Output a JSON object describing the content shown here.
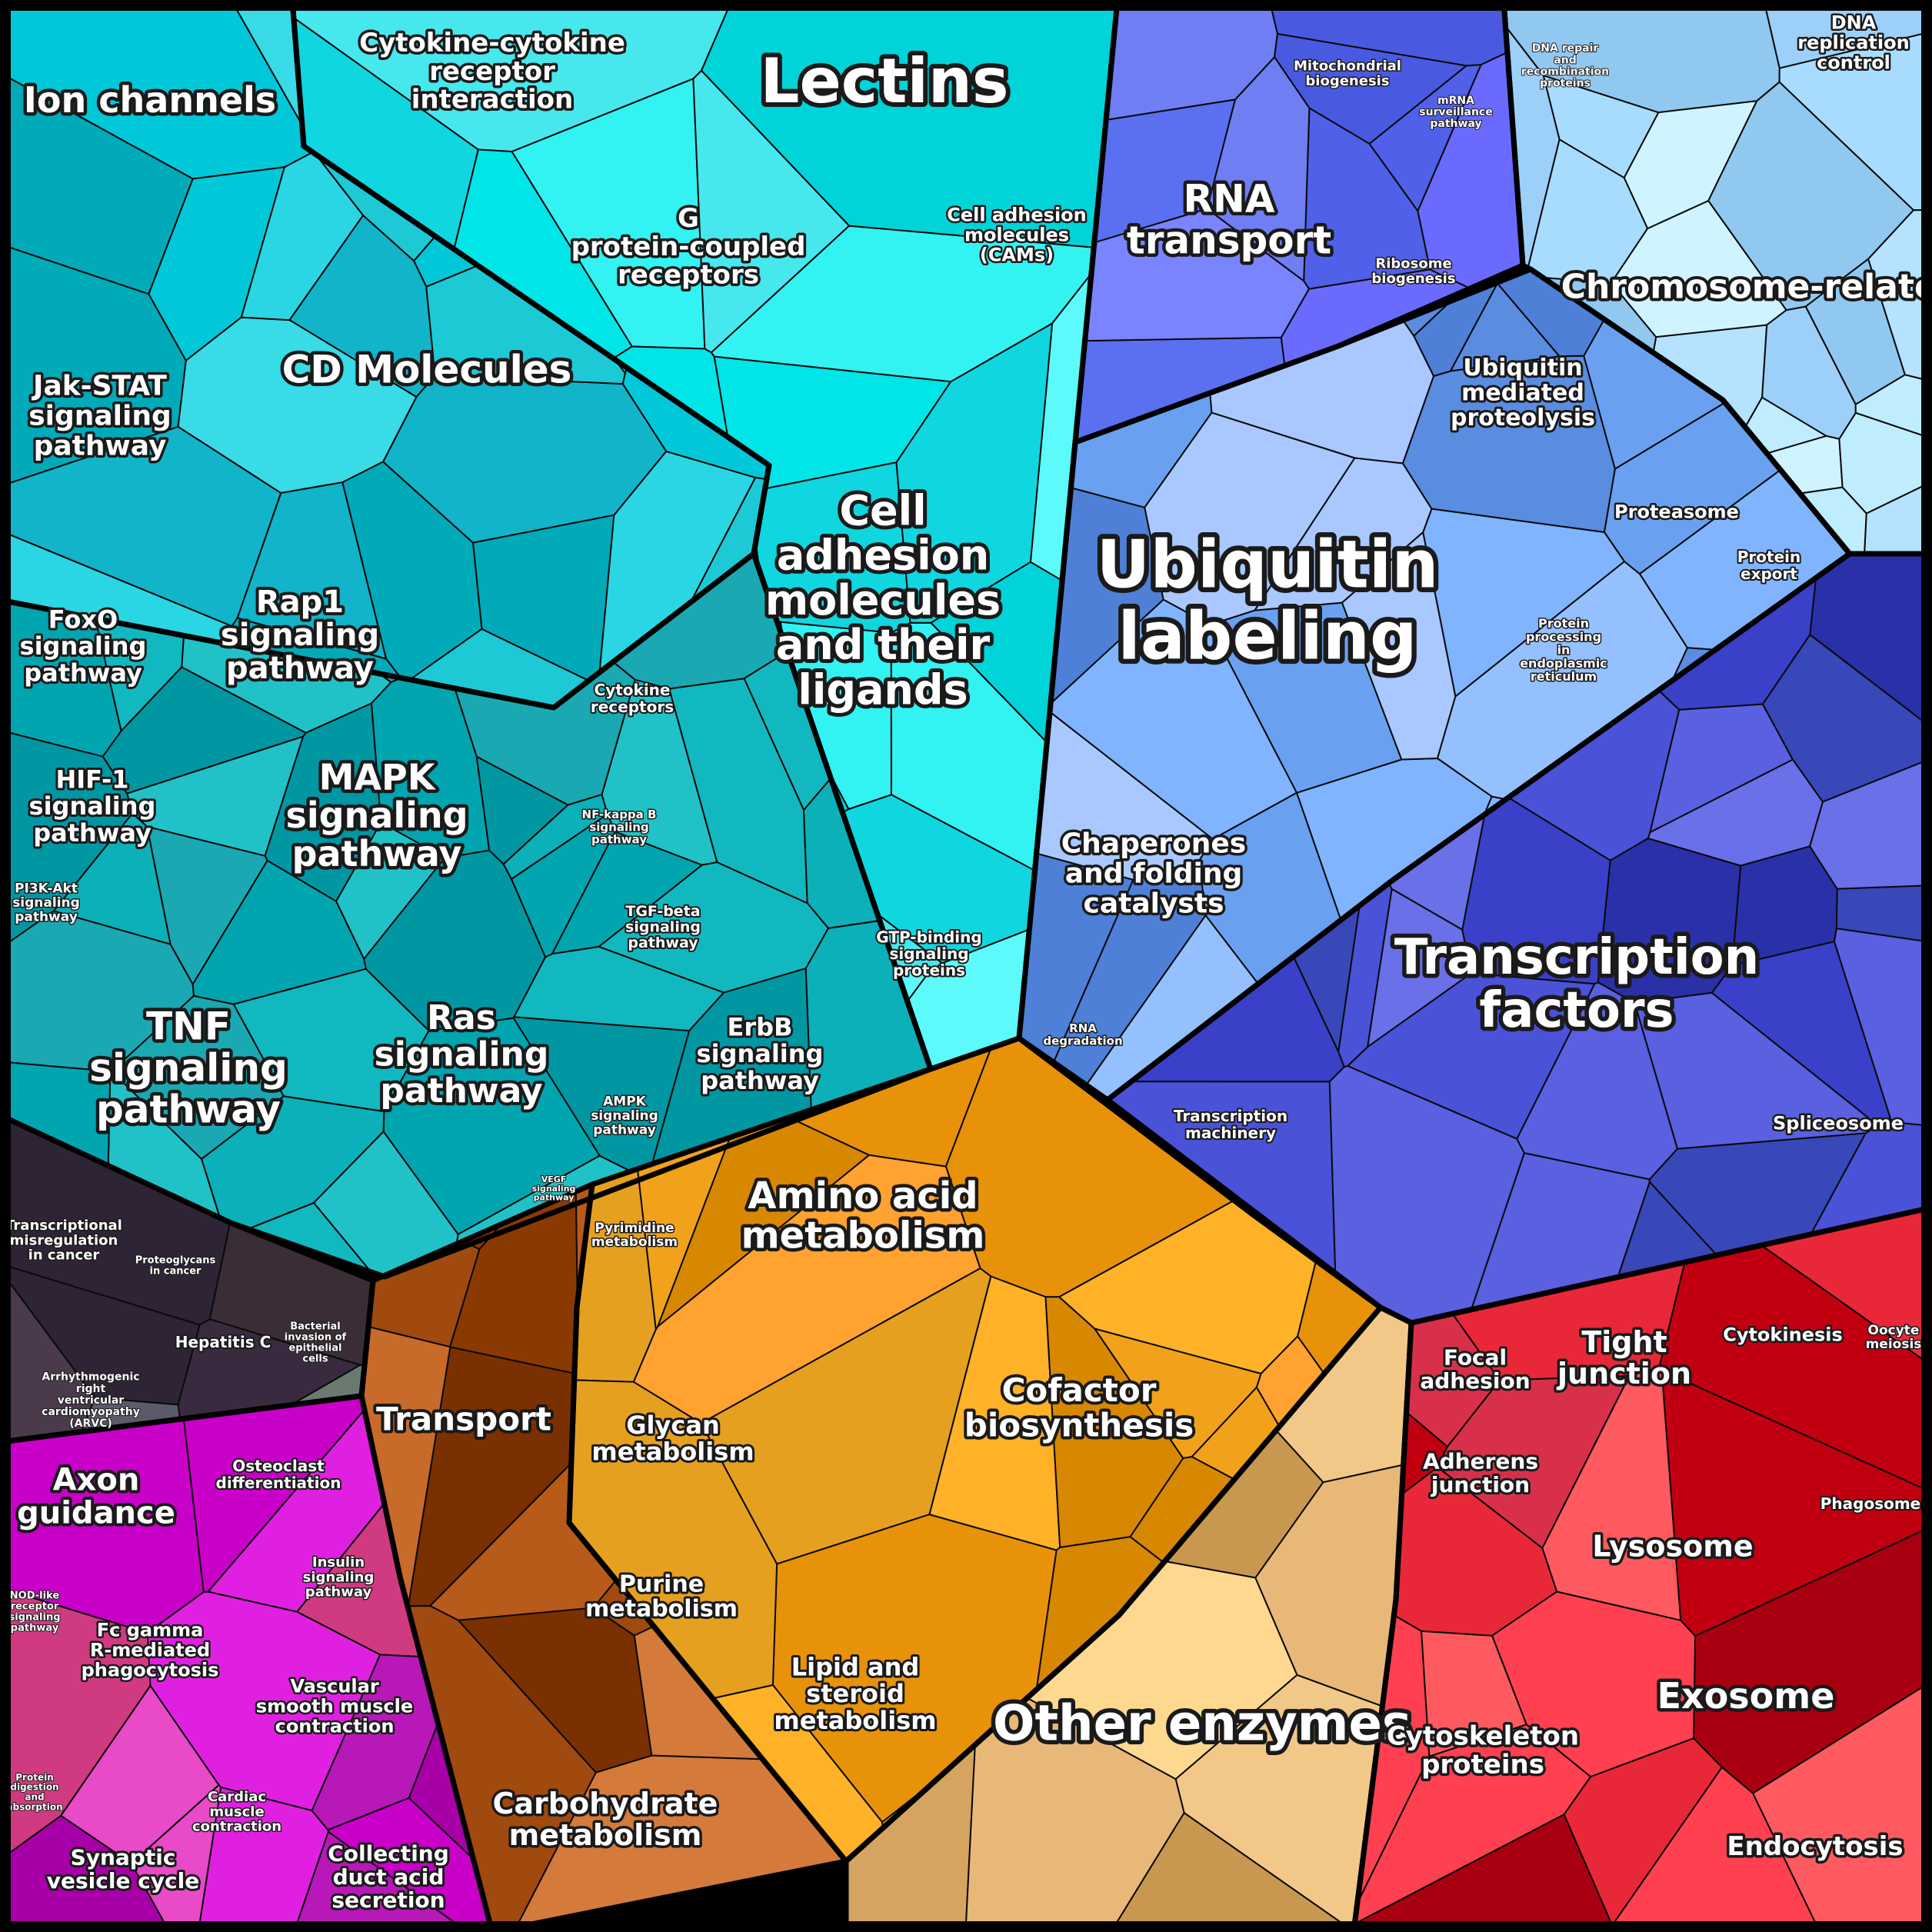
{
  "regions": [
    {
      "id": "cyan",
      "colors": [
        "#00c8d9",
        "#1ec9d6",
        "#11b4c8",
        "#2ad6e3",
        "#00aab9",
        "#38dbe6"
      ]
    },
    {
      "id": "lightcyan",
      "colors": [
        "#00e5e8",
        "#33f2f2",
        "#10d6e0",
        "#5cfafa",
        "#00d4d8",
        "#46e8ee"
      ]
    },
    {
      "id": "teal",
      "colors": [
        "#00a5b0",
        "#12b8bf",
        "#0097a3",
        "#20c2c8",
        "#1aa8b2",
        "#0bb0b8"
      ]
    },
    {
      "id": "darkpurple",
      "colors": [
        "#3a2a40",
        "#2e2436",
        "#4a3a4c",
        "#5c5a6a",
        "#6a7a70",
        "#3b2d35"
      ]
    },
    {
      "id": "magenta",
      "colors": [
        "#e020e0",
        "#c800c8",
        "#a800a8",
        "#d03a80",
        "#e84ac8",
        "#b818b8"
      ]
    },
    {
      "id": "brown",
      "colors": [
        "#8a3a00",
        "#a04a10",
        "#7a3000",
        "#b85a1a",
        "#c86a2a",
        "#d47a3a"
      ]
    },
    {
      "id": "orange",
      "colors": [
        "#f2a21a",
        "#e8920a",
        "#ffb228",
        "#d88800",
        "#ffa230",
        "#e6a020"
      ]
    },
    {
      "id": "tan",
      "colors": [
        "#d4a460",
        "#e8b878",
        "#c89850",
        "#f2c888",
        "#ffd890",
        "#dcae6c"
      ]
    },
    {
      "id": "red",
      "colors": [
        "#e82838",
        "#ff4050",
        "#c00010",
        "#d8304a",
        "#ff5a60",
        "#a80010"
      ]
    },
    {
      "id": "indigo",
      "colors": [
        "#3a40c8",
        "#4a52d8",
        "#2a30a8",
        "#5a60e0",
        "#3848b8",
        "#6a70e8"
      ]
    },
    {
      "id": "periblue",
      "colors": [
        "#6aa0f0",
        "#80b4ff",
        "#5a8ce0",
        "#94c0ff",
        "#4e80d8",
        "#a8c8ff"
      ]
    },
    {
      "id": "royal",
      "colors": [
        "#5a70f0",
        "#6a6aff",
        "#4a5ae0",
        "#7a84ff",
        "#5060e8",
        "#6f7ef2"
      ]
    },
    {
      "id": "skyblue",
      "colors": [
        "#a8dcff",
        "#c0ecff",
        "#90c8f0",
        "#d0f4ff",
        "#b4e2ff",
        "#9cd0f8"
      ]
    }
  ],
  "labels": [
    {
      "text": "Ion channels"
    },
    {
      "text": "Cytokine-cytokine receptor interaction"
    },
    {
      "text": "Lectins"
    },
    {
      "text": "G protein-coupled receptors"
    },
    {
      "text": "Cell adhesion molecules (CAMs)"
    },
    {
      "text": "CD Molecules"
    },
    {
      "text": "Jak-STAT signaling pathway"
    },
    {
      "text": "Cell adhesion molecules and their ligands"
    },
    {
      "text": "FoxO signaling pathway"
    },
    {
      "text": "Rap1 signaling pathway"
    },
    {
      "text": "Cytokine receptors"
    },
    {
      "text": "HIF-1 signaling pathway"
    },
    {
      "text": "MAPK signaling pathway"
    },
    {
      "text": "NF-kappa B signaling pathway"
    },
    {
      "text": "PI3K-Akt signaling pathway"
    },
    {
      "text": "TGF-beta signaling pathway"
    },
    {
      "text": "GTP-binding signaling proteins"
    },
    {
      "text": "TNF signaling pathway"
    },
    {
      "text": "Ras signaling pathway"
    },
    {
      "text": "ErbB signaling pathway"
    },
    {
      "text": "AMPK signaling pathway"
    },
    {
      "text": "VEGF signaling pathway"
    },
    {
      "text": "Transcriptional misregulation in cancer"
    },
    {
      "text": "Proteoglycans in cancer"
    },
    {
      "text": "Hepatitis C"
    },
    {
      "text": "Bacterial invasion of epithelial cells"
    },
    {
      "text": "Arrhythmogenic right ventricular cardiomyopathy (ARVC)"
    },
    {
      "text": "Axon guidance"
    },
    {
      "text": "Osteoclast differentiation"
    },
    {
      "text": "Insulin signaling pathway"
    },
    {
      "text": "NOD-like receptor signaling pathway"
    },
    {
      "text": "Fc gamma R-mediated phagocytosis"
    },
    {
      "text": "Vascular smooth muscle contraction"
    },
    {
      "text": "Protein digestion and absorption"
    },
    {
      "text": "Cardiac muscle contraction"
    },
    {
      "text": "Synaptic vesicle cycle"
    },
    {
      "text": "Collecting duct acid secretion"
    },
    {
      "text": "Transport"
    },
    {
      "text": "Pyrimidine metabolism"
    },
    {
      "text": "Amino acid metabolism"
    },
    {
      "text": "Glycan metabolism"
    },
    {
      "text": "Cofactor biosynthesis"
    },
    {
      "text": "Purine metabolism"
    },
    {
      "text": "Lipid and steroid metabolism"
    },
    {
      "text": "Carbohydrate metabolism"
    },
    {
      "text": "Other enzymes"
    },
    {
      "text": "Mitochondrial biogenesis"
    },
    {
      "text": "mRNA surveillance pathway"
    },
    {
      "text": "DNA repair and recombination proteins"
    },
    {
      "text": "DNA replication control"
    },
    {
      "text": "RNA transport"
    },
    {
      "text": "Ribosome biogenesis"
    },
    {
      "text": "Chromosome-related"
    },
    {
      "text": "Ubiquitin mediated proteolysis"
    },
    {
      "text": "Proteasome"
    },
    {
      "text": "Protein export"
    },
    {
      "text": "Ubiquitin labeling"
    },
    {
      "text": "Protein processing in endoplasmic reticulum"
    },
    {
      "text": "Chaperones and folding catalysts"
    },
    {
      "text": "Transcription factors"
    },
    {
      "text": "RNA degradation"
    },
    {
      "text": "Transcription machinery"
    },
    {
      "text": "Spliceosome"
    },
    {
      "text": "Focal adhesion"
    },
    {
      "text": "Tight junction"
    },
    {
      "text": "Cytokinesis"
    },
    {
      "text": "Oocyte meiosis"
    },
    {
      "text": "Adherens junction"
    },
    {
      "text": "Phagosome"
    },
    {
      "text": "Lysosome"
    },
    {
      "text": "Exosome"
    },
    {
      "text": "Cytoskeleton proteins"
    },
    {
      "text": "Endocytosis"
    }
  ]
}
